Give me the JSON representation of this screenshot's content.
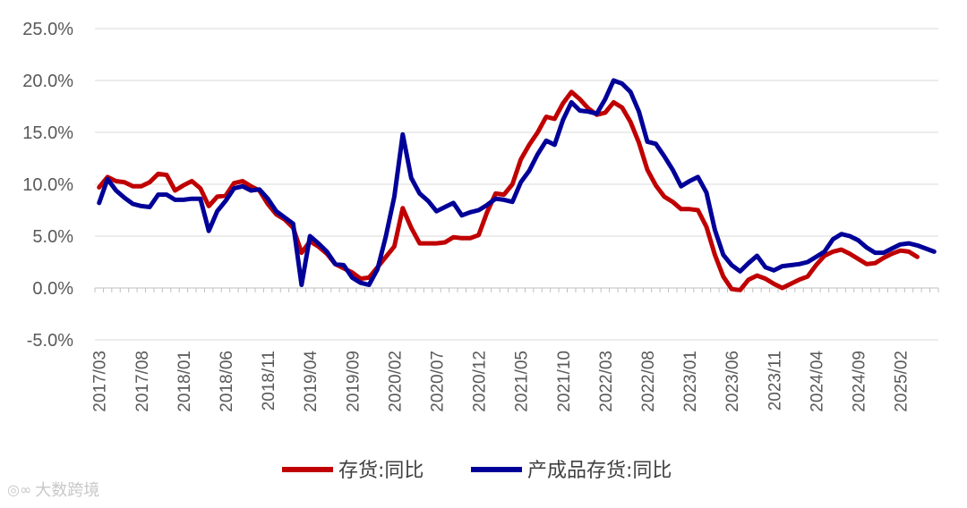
{
  "chart_data": {
    "type": "line",
    "title": "",
    "xlabel": "",
    "ylabel": "",
    "y_unit": "%",
    "ylim": [
      -5,
      25
    ],
    "y_ticks": [
      "25.0%",
      "20.0%",
      "15.0%",
      "10.0%",
      "5.0%",
      "0.0%",
      "-5.0%"
    ],
    "x_tick_labels": [
      "2017/03",
      "2017/08",
      "2018/01",
      "2018/06",
      "2018/11",
      "2019/04",
      "2019/09",
      "2020/02",
      "2020/07",
      "2020/12",
      "2021/05",
      "2021/10",
      "2022/03",
      "2022/08",
      "2023/01",
      "2023/06",
      "2023/11",
      "2024/04",
      "2024/09",
      "2025/02"
    ],
    "grid": true,
    "legend_position": "bottom",
    "series": [
      {
        "name": "存货:同比",
        "color": "#C00000",
        "points": [
          [
            "2017/03",
            9.7
          ],
          [
            "2017/04",
            10.7
          ],
          [
            "2017/05",
            10.3
          ],
          [
            "2017/06",
            10.2
          ],
          [
            "2017/07",
            9.8
          ],
          [
            "2017/08",
            9.8
          ],
          [
            "2017/09",
            10.2
          ],
          [
            "2017/10",
            11.0
          ],
          [
            "2017/11",
            10.9
          ],
          [
            "2017/12",
            9.4
          ],
          [
            "2018/01",
            9.9
          ],
          [
            "2018/02",
            10.3
          ],
          [
            "2018/03",
            9.6
          ],
          [
            "2018/04",
            7.9
          ],
          [
            "2018/05",
            8.8
          ],
          [
            "2018/06",
            8.9
          ],
          [
            "2018/07",
            10.1
          ],
          [
            "2018/08",
            10.3
          ],
          [
            "2018/09",
            9.8
          ],
          [
            "2018/10",
            9.4
          ],
          [
            "2018/11",
            8.1
          ],
          [
            "2018/12",
            7.1
          ],
          [
            "2019/01",
            6.6
          ],
          [
            "2019/02",
            5.8
          ],
          [
            "2019/03",
            3.4
          ],
          [
            "2019/04",
            4.5
          ],
          [
            "2019/05",
            4.0
          ],
          [
            "2019/06",
            3.3
          ],
          [
            "2019/07",
            2.3
          ],
          [
            "2019/08",
            1.9
          ],
          [
            "2019/09",
            1.5
          ],
          [
            "2019/10",
            0.9
          ],
          [
            "2019/11",
            1.0
          ],
          [
            "2019/12",
            2.0
          ],
          [
            "2020/01",
            3.0
          ],
          [
            "2020/02",
            4.0
          ],
          [
            "2020/03",
            7.7
          ],
          [
            "2020/04",
            5.8
          ],
          [
            "2020/05",
            4.3
          ],
          [
            "2020/06",
            4.3
          ],
          [
            "2020/07",
            4.3
          ],
          [
            "2020/08",
            4.4
          ],
          [
            "2020/09",
            4.9
          ],
          [
            "2020/10",
            4.8
          ],
          [
            "2020/11",
            4.8
          ],
          [
            "2020/12",
            5.1
          ],
          [
            "2021/01",
            7.3
          ],
          [
            "2021/02",
            9.1
          ],
          [
            "2021/03",
            9.0
          ],
          [
            "2021/04",
            10.0
          ],
          [
            "2021/05",
            12.4
          ],
          [
            "2021/06",
            13.8
          ],
          [
            "2021/07",
            15.0
          ],
          [
            "2021/08",
            16.5
          ],
          [
            "2021/09",
            16.3
          ],
          [
            "2021/10",
            17.8
          ],
          [
            "2021/11",
            18.9
          ],
          [
            "2021/12",
            18.2
          ],
          [
            "2022/01",
            17.3
          ],
          [
            "2022/02",
            16.7
          ],
          [
            "2022/03",
            16.9
          ],
          [
            "2022/04",
            17.9
          ],
          [
            "2022/05",
            17.4
          ],
          [
            "2022/06",
            16.0
          ],
          [
            "2022/07",
            14.0
          ],
          [
            "2022/08",
            11.4
          ],
          [
            "2022/09",
            9.9
          ],
          [
            "2022/10",
            8.8
          ],
          [
            "2022/11",
            8.3
          ],
          [
            "2022/12",
            7.6
          ],
          [
            "2023/01",
            7.6
          ],
          [
            "2023/02",
            7.5
          ],
          [
            "2023/03",
            5.9
          ],
          [
            "2023/04",
            3.2
          ],
          [
            "2023/05",
            1.1
          ],
          [
            "2023/06",
            -0.1
          ],
          [
            "2023/07",
            -0.2
          ],
          [
            "2023/08",
            0.8
          ],
          [
            "2023/09",
            1.2
          ],
          [
            "2023/10",
            0.9
          ],
          [
            "2023/11",
            0.4
          ],
          [
            "2023/12",
            0.0
          ],
          [
            "2024/01",
            0.4
          ],
          [
            "2024/02",
            0.8
          ],
          [
            "2024/03",
            1.1
          ],
          [
            "2024/04",
            2.2
          ],
          [
            "2024/05",
            3.1
          ],
          [
            "2024/06",
            3.5
          ],
          [
            "2024/07",
            3.7
          ],
          [
            "2024/08",
            3.3
          ],
          [
            "2024/09",
            2.8
          ],
          [
            "2024/10",
            2.3
          ],
          [
            "2024/11",
            2.4
          ],
          [
            "2024/12",
            2.9
          ],
          [
            "2025/01",
            3.3
          ],
          [
            "2025/02",
            3.6
          ],
          [
            "2025/03",
            3.5
          ],
          [
            "2025/04",
            3.0
          ]
        ]
      },
      {
        "name": "产成品存货:同比",
        "color": "#000099",
        "points": [
          [
            "2017/03",
            8.2
          ],
          [
            "2017/04",
            10.5
          ],
          [
            "2017/05",
            9.4
          ],
          [
            "2017/06",
            8.7
          ],
          [
            "2017/07",
            8.1
          ],
          [
            "2017/08",
            7.9
          ],
          [
            "2017/09",
            7.8
          ],
          [
            "2017/10",
            9.0
          ],
          [
            "2017/11",
            9.0
          ],
          [
            "2017/12",
            8.5
          ],
          [
            "2018/01",
            8.5
          ],
          [
            "2018/02",
            8.6
          ],
          [
            "2018/03",
            8.6
          ],
          [
            "2018/04",
            5.5
          ],
          [
            "2018/05",
            7.4
          ],
          [
            "2018/06",
            8.4
          ],
          [
            "2018/07",
            9.6
          ],
          [
            "2018/08",
            9.8
          ],
          [
            "2018/09",
            9.4
          ],
          [
            "2018/10",
            9.5
          ],
          [
            "2018/11",
            8.6
          ],
          [
            "2018/12",
            7.4
          ],
          [
            "2019/01",
            6.8
          ],
          [
            "2019/02",
            6.2
          ],
          [
            "2019/03",
            0.3
          ],
          [
            "2019/04",
            5.0
          ],
          [
            "2019/05",
            4.3
          ],
          [
            "2019/06",
            3.5
          ],
          [
            "2019/07",
            2.3
          ],
          [
            "2019/08",
            2.2
          ],
          [
            "2019/09",
            1.0
          ],
          [
            "2019/10",
            0.5
          ],
          [
            "2019/11",
            0.3
          ],
          [
            "2019/12",
            1.8
          ],
          [
            "2020/01",
            5.0
          ],
          [
            "2020/02",
            8.8
          ],
          [
            "2020/03",
            14.8
          ],
          [
            "2020/04",
            10.6
          ],
          [
            "2020/05",
            9.1
          ],
          [
            "2020/06",
            8.4
          ],
          [
            "2020/07",
            7.4
          ],
          [
            "2020/08",
            7.8
          ],
          [
            "2020/09",
            8.2
          ],
          [
            "2020/10",
            7.0
          ],
          [
            "2020/11",
            7.3
          ],
          [
            "2020/12",
            7.5
          ],
          [
            "2021/01",
            8.0
          ],
          [
            "2021/02",
            8.6
          ],
          [
            "2021/03",
            8.5
          ],
          [
            "2021/04",
            8.3
          ],
          [
            "2021/05",
            10.2
          ],
          [
            "2021/06",
            11.3
          ],
          [
            "2021/07",
            12.9
          ],
          [
            "2021/08",
            14.2
          ],
          [
            "2021/09",
            13.8
          ],
          [
            "2021/10",
            16.2
          ],
          [
            "2021/11",
            17.9
          ],
          [
            "2021/12",
            17.1
          ],
          [
            "2022/01",
            17.0
          ],
          [
            "2022/02",
            16.8
          ],
          [
            "2022/03",
            18.2
          ],
          [
            "2022/04",
            20.0
          ],
          [
            "2022/05",
            19.7
          ],
          [
            "2022/06",
            18.9
          ],
          [
            "2022/07",
            17.0
          ],
          [
            "2022/08",
            14.1
          ],
          [
            "2022/09",
            13.9
          ],
          [
            "2022/10",
            12.7
          ],
          [
            "2022/11",
            11.4
          ],
          [
            "2022/12",
            9.8
          ],
          [
            "2023/01",
            10.3
          ],
          [
            "2023/02",
            10.7
          ],
          [
            "2023/03",
            9.2
          ],
          [
            "2023/04",
            5.6
          ],
          [
            "2023/05",
            3.2
          ],
          [
            "2023/06",
            2.2
          ],
          [
            "2023/07",
            1.6
          ],
          [
            "2023/08",
            2.4
          ],
          [
            "2023/09",
            3.1
          ],
          [
            "2023/10",
            2.0
          ],
          [
            "2023/11",
            1.7
          ],
          [
            "2023/12",
            2.1
          ],
          [
            "2024/01",
            2.2
          ],
          [
            "2024/02",
            2.3
          ],
          [
            "2024/03",
            2.5
          ],
          [
            "2024/04",
            3.0
          ],
          [
            "2024/05",
            3.5
          ],
          [
            "2024/06",
            4.7
          ],
          [
            "2024/07",
            5.2
          ],
          [
            "2024/08",
            5.0
          ],
          [
            "2024/09",
            4.6
          ],
          [
            "2024/10",
            3.9
          ],
          [
            "2024/11",
            3.4
          ],
          [
            "2024/12",
            3.4
          ],
          [
            "2025/01",
            3.8
          ],
          [
            "2025/02",
            4.2
          ],
          [
            "2025/03",
            4.3
          ],
          [
            "2025/04",
            4.1
          ],
          [
            "2025/05",
            3.8
          ],
          [
            "2025/06",
            3.5
          ]
        ]
      }
    ]
  },
  "watermark": {
    "text": "大数跨境",
    "icon": "logo-icon"
  }
}
